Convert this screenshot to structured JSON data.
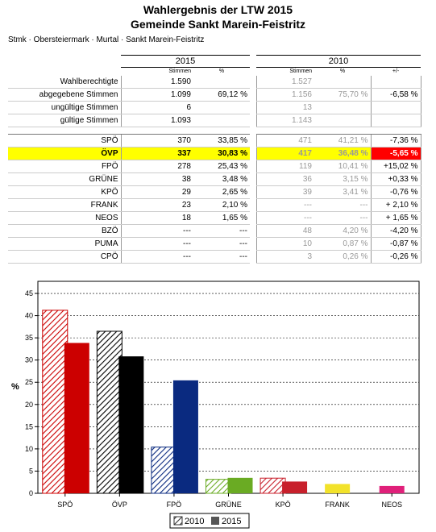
{
  "header": {
    "title": "Wahlergebnis der LTW 2015",
    "subtitle": "Gemeinde Sankt Marein-Feistritz",
    "breadcrumb": "Stmk · Obersteiermark · Murtal · Sankt Marein-Feistritz"
  },
  "table": {
    "year_2015": "2015",
    "year_2010": "2010",
    "col_stimmen": "Stimmen",
    "col_pct": "%",
    "col_diff": "+/-",
    "summary": [
      {
        "label": "Wahlberechtigte",
        "v15": "1.590",
        "p15": "",
        "v10": "1.527",
        "p10": "",
        "diff": ""
      },
      {
        "label": "abgegebene Stimmen",
        "v15": "1.099",
        "p15": "69,12 %",
        "v10": "1.156",
        "p10": "75,70 %",
        "diff": "-6,58 %"
      },
      {
        "label": "ungültige Stimmen",
        "v15": "6",
        "p15": "",
        "v10": "13",
        "p10": "",
        "diff": ""
      },
      {
        "label": "gültige Stimmen",
        "v15": "1.093",
        "p15": "",
        "v10": "1.143",
        "p10": "",
        "diff": ""
      }
    ],
    "parties": [
      {
        "label": "SPÖ",
        "v15": "370",
        "p15": "33,85 %",
        "v10": "471",
        "p10": "41,21 %",
        "diff": "-7,36 %"
      },
      {
        "label": "ÖVP",
        "v15": "337",
        "p15": "30,83 %",
        "v10": "417",
        "p10": "36,48 %",
        "diff": "-5,65 %"
      },
      {
        "label": "FPÖ",
        "v15": "278",
        "p15": "25,43 %",
        "v10": "119",
        "p10": "10,41 %",
        "diff": "+15,02 %"
      },
      {
        "label": "GRÜNE",
        "v15": "38",
        "p15": "3,48 %",
        "v10": "36",
        "p10": "3,15 %",
        "diff": "+0,33 %"
      },
      {
        "label": "KPÖ",
        "v15": "29",
        "p15": "2,65 %",
        "v10": "39",
        "p10": "3,41 %",
        "diff": "-0,76 %"
      },
      {
        "label": "FRANK",
        "v15": "23",
        "p15": "2,10 %",
        "v10": "---",
        "p10": "---",
        "diff": "+ 2,10 %"
      },
      {
        "label": "NEOS",
        "v15": "18",
        "p15": "1,65 %",
        "v10": "---",
        "p10": "---",
        "diff": "+ 1,65 %"
      },
      {
        "label": "BZÖ",
        "v15": "---",
        "p15": "---",
        "v10": "48",
        "p10": "4,20 %",
        "diff": "-4,20 %"
      },
      {
        "label": "PUMA",
        "v15": "---",
        "p15": "---",
        "v10": "10",
        "p10": "0,87 %",
        "diff": "-0,87 %"
      },
      {
        "label": "CPÖ",
        "v15": "---",
        "p15": "---",
        "v10": "3",
        "p10": "0,26 %",
        "diff": "-0,26 %"
      }
    ],
    "highlight_row": 1
  },
  "colors": {
    "SPÖ": "#cc0000",
    "ÖVP": "#000000",
    "FPÖ": "#0a2a80",
    "GRÜNE": "#6aab23",
    "KPÖ": "#c8202c",
    "FRANK": "#f2e22a",
    "NEOS": "#e0207a",
    "highlight": "#ffff00",
    "negative_highlight": "#ff0000"
  },
  "chart_data": {
    "type": "bar",
    "categories": [
      "SPÖ",
      "ÖVP",
      "FPÖ",
      "GRÜNE",
      "KPÖ",
      "FRANK",
      "NEOS"
    ],
    "series": [
      {
        "name": "2010",
        "values": [
          41.21,
          36.48,
          10.41,
          3.15,
          3.41,
          null,
          null
        ],
        "style": "hatched"
      },
      {
        "name": "2015",
        "values": [
          33.85,
          30.83,
          25.43,
          3.48,
          2.65,
          2.1,
          1.65
        ],
        "style": "solid"
      }
    ],
    "ylabel": "%",
    "yticks": [
      0,
      5,
      10,
      15,
      20,
      25,
      30,
      35,
      40,
      45
    ],
    "ylim": [
      0,
      47
    ],
    "grid": true,
    "legend": "bottom-right"
  }
}
